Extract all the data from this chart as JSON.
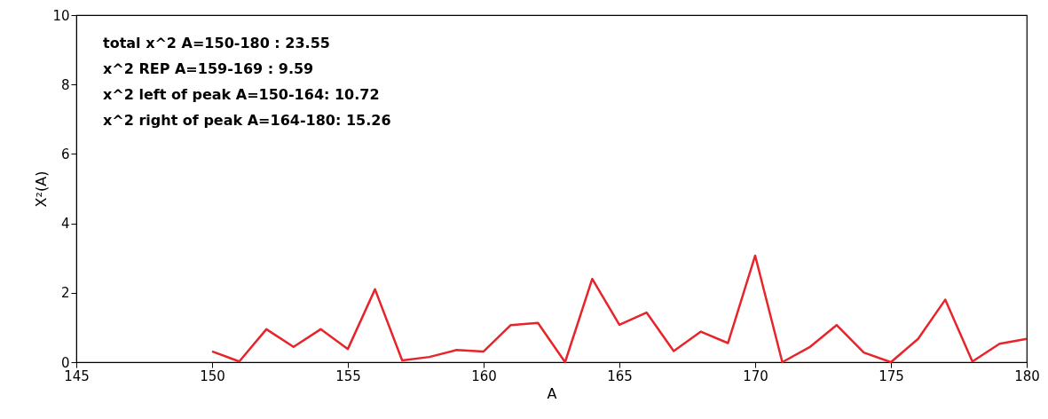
{
  "chart_data": {
    "type": "line",
    "xlabel": "A",
    "ylabel": "X²(A)",
    "x": [
      150,
      151,
      152,
      153,
      154,
      155,
      156,
      157,
      158,
      159,
      160,
      161,
      162,
      163,
      164,
      165,
      166,
      167,
      168,
      169,
      170,
      171,
      172,
      173,
      174,
      175,
      176,
      177,
      178,
      179,
      180
    ],
    "series": [
      {
        "color": "#e8242b",
        "values": [
          0.31,
          0.02,
          0.95,
          0.44,
          0.95,
          0.38,
          2.1,
          0.05,
          0.15,
          0.35,
          0.31,
          1.07,
          1.13,
          0.0,
          2.4,
          1.08,
          1.43,
          0.32,
          0.88,
          0.55,
          3.07,
          0.0,
          0.43,
          1.07,
          0.28,
          0.0,
          0.67,
          1.8,
          0.02,
          0.53,
          0.67
        ]
      }
    ],
    "xlim": [
      145,
      180
    ],
    "xticks": [
      145,
      150,
      155,
      160,
      165,
      170,
      175,
      180
    ],
    "ylim": [
      0,
      10
    ],
    "yticks": [
      0,
      2,
      4,
      6,
      8,
      10
    ],
    "annotations": [
      "total x^2 A=150-180 : 23.55",
      "x^2 REP A=159-169 : 9.59",
      "x^2 left of peak A=150-164: 10.72",
      "x^2 right of peak A=164-180: 15.26"
    ],
    "grid": false,
    "marker": "none",
    "line_style": "solid"
  }
}
